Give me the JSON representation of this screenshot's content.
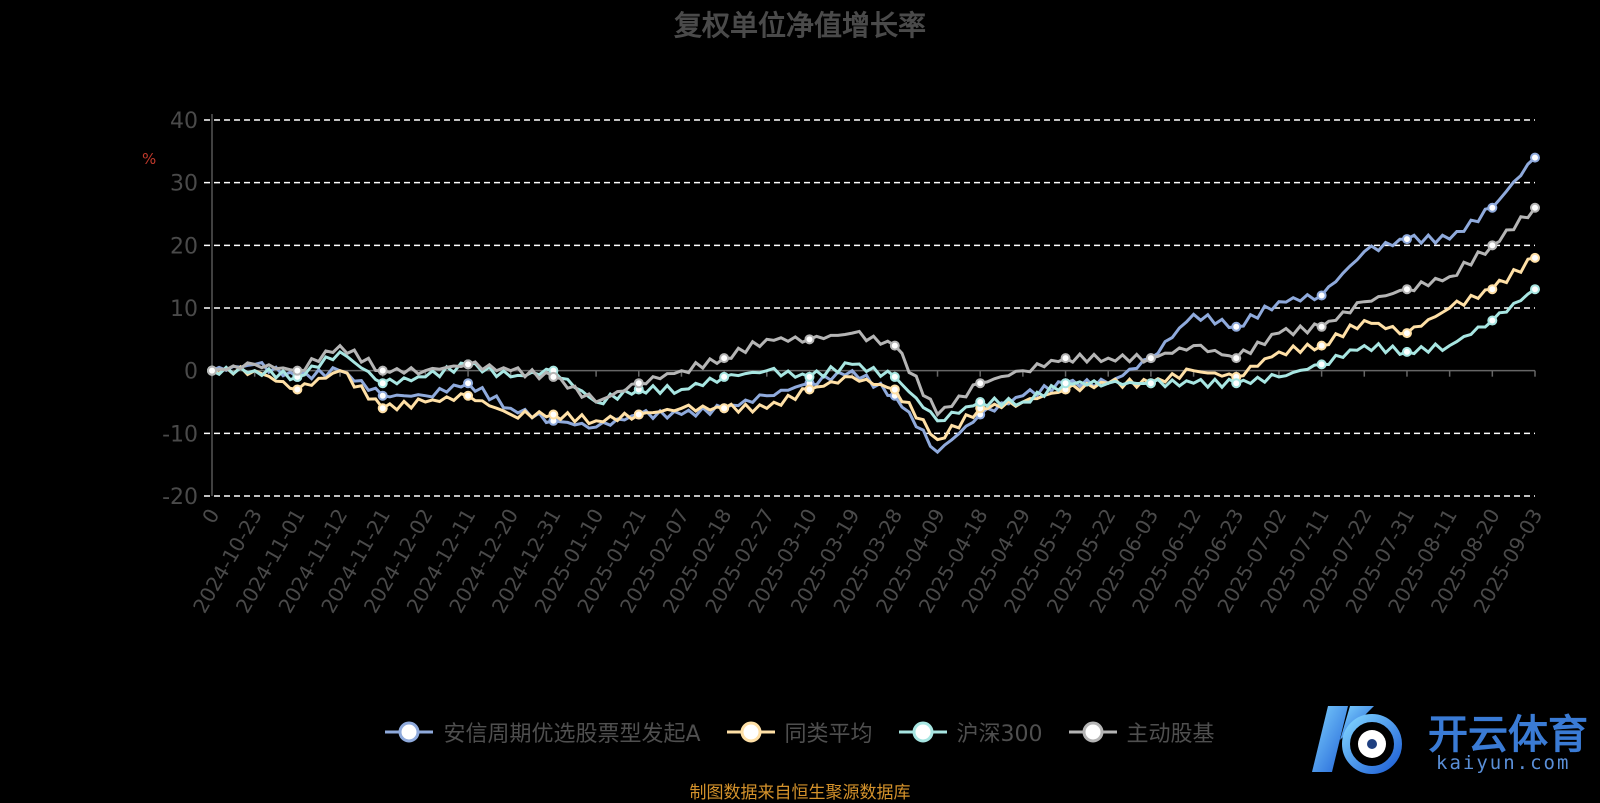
{
  "chart_data": {
    "type": "line",
    "title": "复权单位净值增长率",
    "ylabel": "%",
    "ylim": [
      -20,
      40
    ],
    "yticks": [
      -20,
      -10,
      0,
      10,
      20,
      30,
      40
    ],
    "grid": true,
    "legend_position": "bottom",
    "categories": [
      "0",
      "2024-10-23",
      "2024-11-01",
      "2024-11-12",
      "2024-11-21",
      "2024-12-02",
      "2024-12-11",
      "2024-12-20",
      "2024-12-31",
      "2025-01-10",
      "2025-01-21",
      "2025-02-07",
      "2025-02-18",
      "2025-02-27",
      "2025-03-10",
      "2025-03-19",
      "2025-03-28",
      "2025-04-09",
      "2025-04-18",
      "2025-04-29",
      "2025-05-13",
      "2025-05-22",
      "2025-06-03",
      "2025-06-12",
      "2025-06-23",
      "2025-07-02",
      "2025-07-11",
      "2025-07-22",
      "2025-07-31",
      "2025-08-11",
      "2025-08-20",
      "2025-09-03"
    ],
    "series": [
      {
        "name": "安信周期优选股票型发起A",
        "color": "#8faadc",
        "values": [
          0,
          1,
          -1,
          0,
          -4,
          -4,
          -2,
          -6,
          -8,
          -9,
          -7,
          -7,
          -6,
          -4,
          -2,
          0,
          -4,
          -13,
          -7,
          -4,
          -2,
          -2,
          2,
          9,
          7,
          11,
          12,
          19,
          21,
          21,
          26,
          34
        ]
      },
      {
        "name": "同类平均",
        "color": "#ffe0a6",
        "values": [
          0,
          0,
          -3,
          0,
          -6,
          -5,
          -4,
          -7,
          -7,
          -8,
          -7,
          -6,
          -6,
          -6,
          -3,
          -1,
          -3,
          -11,
          -6,
          -5,
          -3,
          -2,
          -2,
          0,
          -1,
          3,
          4,
          8,
          6,
          10,
          13,
          18
        ]
      },
      {
        "name": "沪深300",
        "color": "#a8e6e2",
        "values": [
          0,
          0,
          -1,
          3,
          -2,
          -1,
          1,
          -1,
          0,
          -5,
          -3,
          -3,
          -1,
          0,
          -1,
          1,
          -1,
          -8,
          -5,
          -5,
          -2,
          -2,
          -2,
          -2,
          -2,
          -1,
          1,
          4,
          3,
          4,
          8,
          13
        ]
      },
      {
        "name": "主动股基",
        "color": "#b5b5b5",
        "values": [
          0,
          1,
          0,
          4,
          0,
          0,
          1,
          0,
          -1,
          -5,
          -2,
          0,
          2,
          5,
          5,
          6,
          4,
          -7,
          -2,
          0,
          2,
          2,
          2,
          4,
          2,
          6,
          7,
          11,
          13,
          15,
          20,
          26
        ]
      }
    ]
  },
  "source_text": "制图数据来自恒生聚源数据库",
  "logo": {
    "cn": "开云体育",
    "en": "kaiyun.com"
  }
}
